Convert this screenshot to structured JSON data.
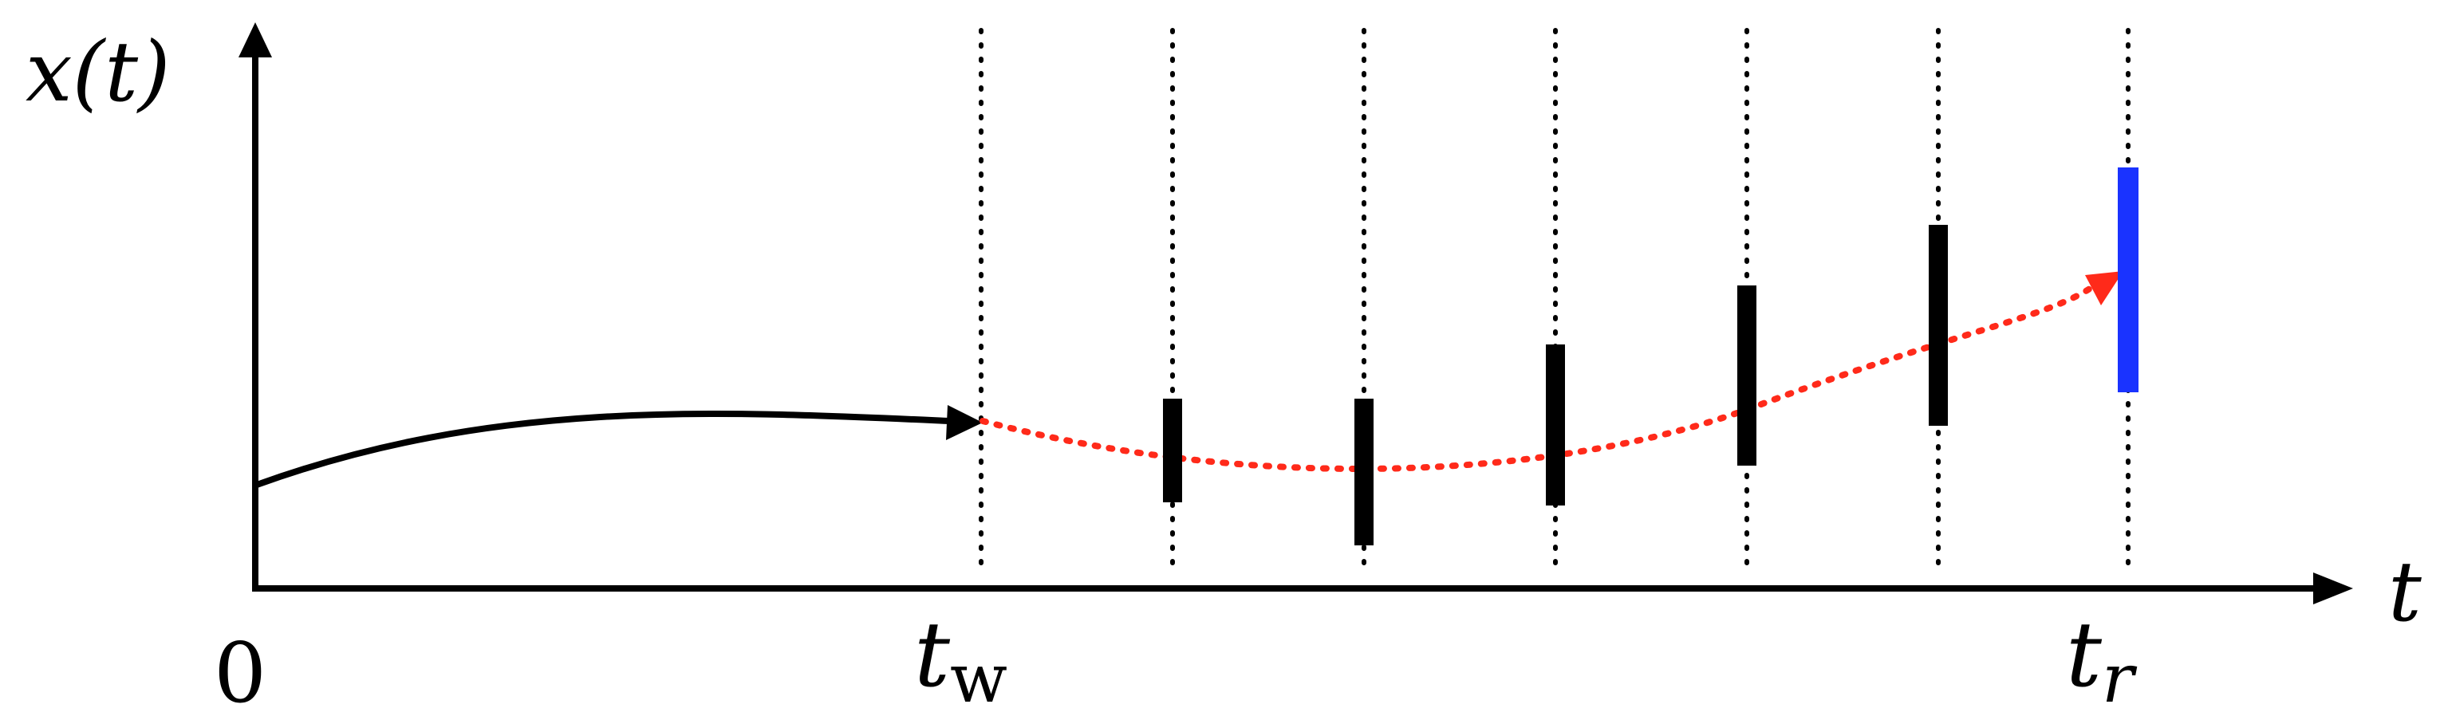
{
  "axes": {
    "y_label": "x(t)",
    "x_label": "t",
    "origin_label": "0"
  },
  "markers": {
    "tw": {
      "main": "t",
      "sub": "w"
    },
    "tr": {
      "main": "t",
      "sub": "r"
    }
  },
  "colors": {
    "axis": "#000000",
    "trajectory": "#000000",
    "extrapolation": "#ff2a1a",
    "error_bar": "#000000",
    "final_bar": "#1a33ff",
    "guide": "#000000"
  }
}
